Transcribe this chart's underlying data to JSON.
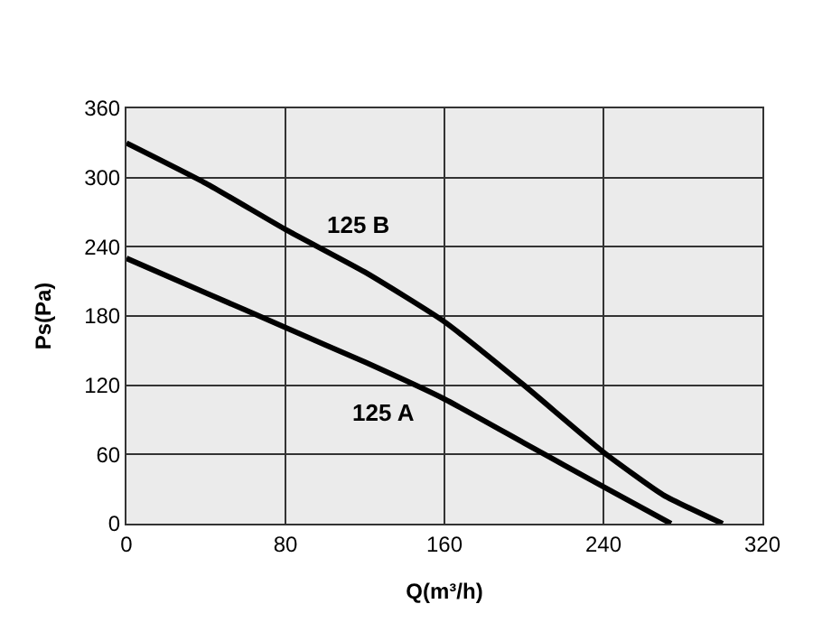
{
  "chart_data": {
    "type": "line",
    "xlabel": "Q(m³/h)",
    "ylabel": "Ps(Pa)",
    "xlim": [
      0,
      320
    ],
    "ylim": [
      0,
      360
    ],
    "xticks": [
      0,
      80,
      160,
      240,
      320
    ],
    "yticks": [
      0,
      60,
      120,
      180,
      240,
      300,
      360
    ],
    "grid": true,
    "legend": false,
    "marker": "none",
    "line_style": "solid",
    "series": [
      {
        "name": "125 B",
        "color": "#000000",
        "x": [
          0,
          40,
          80,
          120,
          160,
          200,
          240,
          270,
          300
        ],
        "values": [
          330,
          295,
          255,
          218,
          175,
          120,
          62,
          25,
          0
        ]
      },
      {
        "name": "125 A",
        "color": "#000000",
        "x": [
          0,
          40,
          80,
          120,
          160,
          200,
          240,
          274
        ],
        "values": [
          230,
          200,
          170,
          140,
          108,
          70,
          32,
          0
        ]
      }
    ]
  }
}
